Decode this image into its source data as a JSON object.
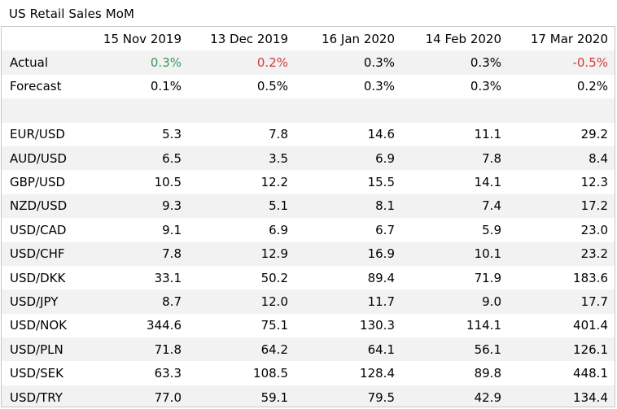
{
  "title": "US Retail Sales MoM",
  "colors": {
    "positive": "#3a9a5b",
    "negative": "#d33a3a",
    "band": "#f2f2f2",
    "border": "#c8c8c8"
  },
  "chart_data": {
    "type": "table",
    "columns": [
      "15 Nov 2019",
      "13 Dec 2019",
      "16 Jan 2020",
      "14 Feb 2020",
      "17 Mar 2020"
    ],
    "summary_rows": [
      {
        "label": "Actual",
        "values": [
          "0.3%",
          "0.2%",
          "0.3%",
          "0.3%",
          "-0.5%"
        ],
        "colors": [
          "#3a9a5b",
          "#d33a3a",
          "#000000",
          "#000000",
          "#d33a3a"
        ]
      },
      {
        "label": "Forecast",
        "values": [
          "0.1%",
          "0.5%",
          "0.3%",
          "0.3%",
          "0.2%"
        ],
        "colors": [
          "#000000",
          "#000000",
          "#000000",
          "#000000",
          "#000000"
        ]
      }
    ],
    "pair_rows": [
      {
        "label": "EUR/USD",
        "values": [
          "5.3",
          "7.8",
          "14.6",
          "11.1",
          "29.2"
        ]
      },
      {
        "label": "AUD/USD",
        "values": [
          "6.5",
          "3.5",
          "6.9",
          "7.8",
          "8.4"
        ]
      },
      {
        "label": "GBP/USD",
        "values": [
          "10.5",
          "12.2",
          "15.5",
          "14.1",
          "12.3"
        ]
      },
      {
        "label": "NZD/USD",
        "values": [
          "9.3",
          "5.1",
          "8.1",
          "7.4",
          "17.2"
        ]
      },
      {
        "label": "USD/CAD",
        "values": [
          "9.1",
          "6.9",
          "6.7",
          "5.9",
          "23.0"
        ]
      },
      {
        "label": "USD/CHF",
        "values": [
          "7.8",
          "12.9",
          "16.9",
          "10.1",
          "23.2"
        ]
      },
      {
        "label": "USD/DKK",
        "values": [
          "33.1",
          "50.2",
          "89.4",
          "71.9",
          "183.6"
        ]
      },
      {
        "label": "USD/JPY",
        "values": [
          "8.7",
          "12.0",
          "11.7",
          "9.0",
          "17.7"
        ]
      },
      {
        "label": "USD/NOK",
        "values": [
          "344.6",
          "75.1",
          "130.3",
          "114.1",
          "401.4"
        ]
      },
      {
        "label": "USD/PLN",
        "values": [
          "71.8",
          "64.2",
          "64.1",
          "56.1",
          "126.1"
        ]
      },
      {
        "label": "USD/SEK",
        "values": [
          "63.3",
          "108.5",
          "128.4",
          "89.8",
          "448.1"
        ]
      },
      {
        "label": "USD/TRY",
        "values": [
          "77.0",
          "59.1",
          "79.5",
          "42.9",
          "134.4"
        ]
      }
    ]
  }
}
